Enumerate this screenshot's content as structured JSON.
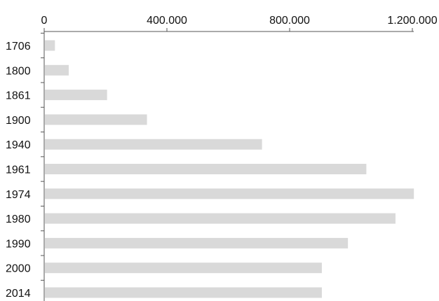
{
  "chart_data": {
    "type": "bar",
    "orientation": "horizontal",
    "title": "",
    "xlabel": "",
    "ylabel": "",
    "categories": [
      "1706",
      "1800",
      "1861",
      "1900",
      "1940",
      "1961",
      "1974",
      "1980",
      "1990",
      "2000",
      "2014"
    ],
    "values": [
      35000,
      80000,
      205000,
      335000,
      710000,
      1050000,
      1205000,
      1145000,
      990000,
      905000,
      905000
    ],
    "x_ticks": [
      0,
      400000,
      800000,
      1200000
    ],
    "x_tick_labels": [
      "0",
      "400.000",
      "800.000",
      "1.200.000"
    ],
    "xlim": [
      0,
      1200000
    ],
    "x_axis_position": "top",
    "grid": false,
    "legend": "none",
    "bar_color": "#d9d9d9",
    "axis_color": "#555555"
  }
}
